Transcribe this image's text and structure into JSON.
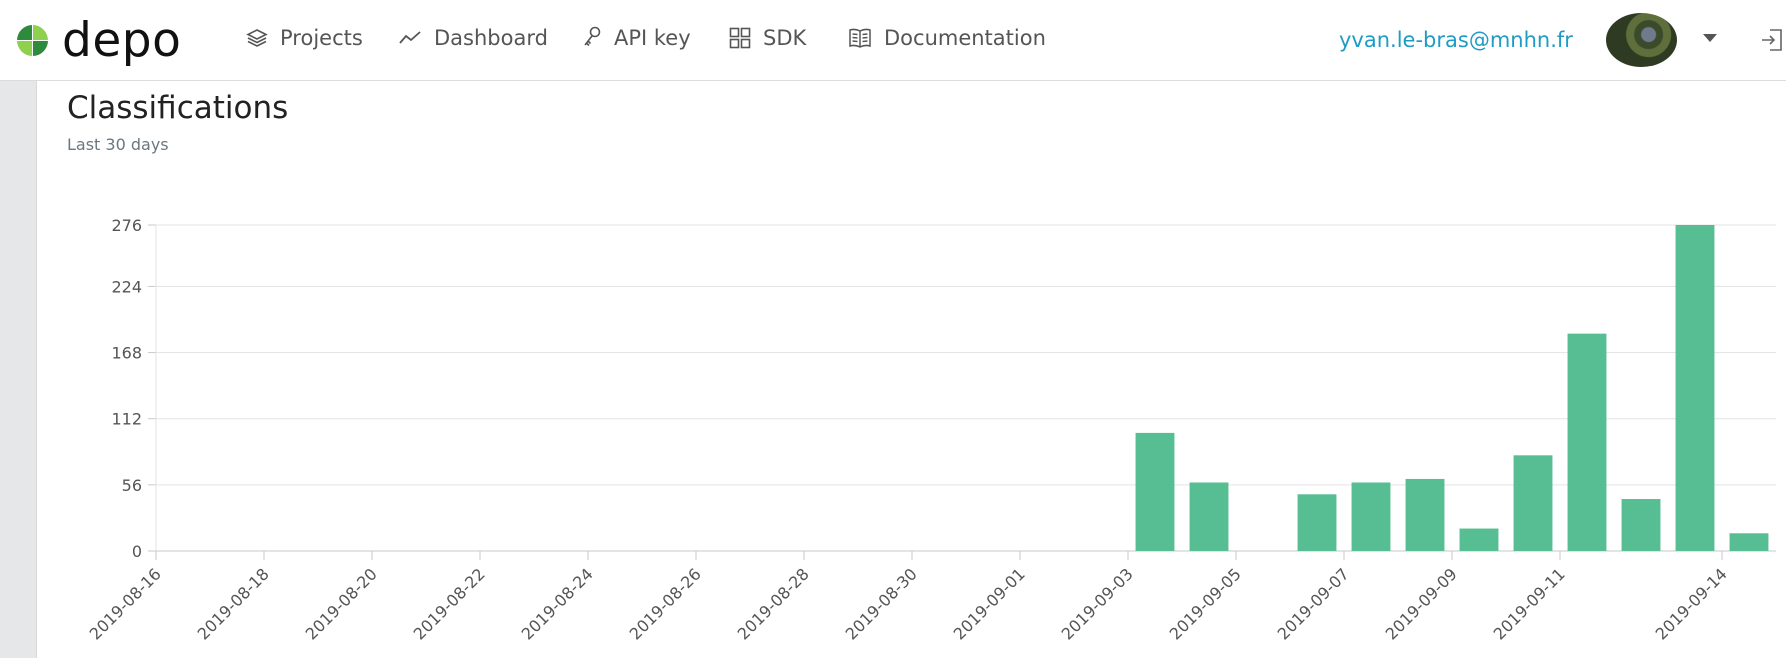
{
  "brand": {
    "name": "depo"
  },
  "nav": {
    "items": [
      {
        "label": "Projects",
        "icon": "layers-icon"
      },
      {
        "label": "Dashboard",
        "icon": "trend-line-icon"
      },
      {
        "label": "API key",
        "icon": "key-icon"
      },
      {
        "label": "SDK",
        "icon": "grid-icon"
      },
      {
        "label": "Documentation",
        "icon": "book-icon"
      }
    ],
    "user_email": "yvan.le-bras@mnhn.fr"
  },
  "page": {
    "title": "Classifications",
    "subtitle": "Last 30 days"
  },
  "colors": {
    "bar": "#57bd93",
    "link": "#1f9bc7",
    "logo_dark": "#2e8b3c",
    "logo_light": "#8fd14f"
  },
  "chart_data": {
    "type": "bar",
    "title": "",
    "xlabel": "",
    "ylabel": "",
    "ylim": [
      0,
      276
    ],
    "yticks": [
      0,
      56,
      112,
      168,
      224,
      276
    ],
    "grid": true,
    "x_tick_labels": [
      "2019-08-16",
      "2019-08-18",
      "2019-08-20",
      "2019-08-22",
      "2019-08-24",
      "2019-08-26",
      "2019-08-28",
      "2019-08-30",
      "2019-09-01",
      "2019-09-03",
      "2019-09-05",
      "2019-09-07",
      "2019-09-09",
      "2019-09-11",
      "2019-09-14"
    ],
    "categories": [
      "2019-08-16",
      "2019-08-17",
      "2019-08-18",
      "2019-08-19",
      "2019-08-20",
      "2019-08-21",
      "2019-08-22",
      "2019-08-23",
      "2019-08-24",
      "2019-08-25",
      "2019-08-26",
      "2019-08-27",
      "2019-08-28",
      "2019-08-29",
      "2019-08-30",
      "2019-08-31",
      "2019-09-01",
      "2019-09-02",
      "2019-09-03",
      "2019-09-04",
      "2019-09-05",
      "2019-09-06",
      "2019-09-07",
      "2019-09-08",
      "2019-09-09",
      "2019-09-10",
      "2019-09-11",
      "2019-09-12",
      "2019-09-13",
      "2019-09-14"
    ],
    "values": [
      0,
      0,
      0,
      0,
      0,
      0,
      0,
      0,
      0,
      0,
      0,
      0,
      0,
      0,
      0,
      0,
      0,
      0,
      100,
      58,
      0,
      48,
      58,
      61,
      19,
      81,
      184,
      44,
      276,
      15
    ]
  }
}
